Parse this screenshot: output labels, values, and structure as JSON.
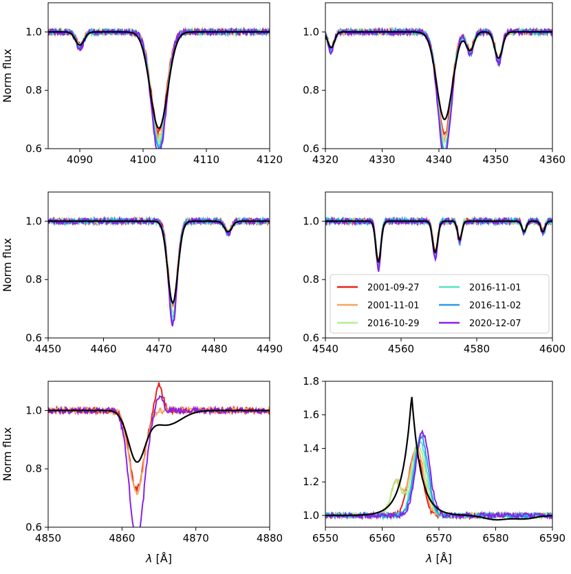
{
  "figure": {
    "ylabel": "Norm flux",
    "xlabel": "λ [Å]"
  },
  "legend": {
    "entries": [
      {
        "label": "2001-09-27",
        "color": "#e8211c"
      },
      {
        "label": "2001-11-01",
        "color": "#f5a35c"
      },
      {
        "label": "2016-10-29",
        "color": "#b5ec8c"
      },
      {
        "label": "2016-11-01",
        "color": "#57e3c8"
      },
      {
        "label": "2016-11-02",
        "color": "#2a9be8"
      },
      {
        "label": "2020-12-07",
        "color": "#8a1fe8"
      }
    ]
  },
  "chart_data": [
    {
      "type": "line",
      "panel": "top-left",
      "xlim": [
        4085,
        4120
      ],
      "ylim": [
        0.6,
        1.1
      ],
      "xticks": [
        4090,
        4100,
        4110,
        4120
      ],
      "yticks": [
        0.6,
        0.8,
        1.0
      ],
      "ylabel": "Norm flux",
      "xlabel": "",
      "lines": [
        {
          "center": 4102.5,
          "depth": 0.38,
          "width": 1.2
        },
        {
          "center": 4090,
          "depth": 0.05,
          "width": 0.6
        }
      ],
      "model": {
        "color": "#000000",
        "depth": 0.33
      }
    },
    {
      "type": "line",
      "panel": "top-right",
      "xlim": [
        4320,
        4360
      ],
      "ylim": [
        0.6,
        1.1
      ],
      "xticks": [
        4320,
        4330,
        4340,
        4350,
        4360
      ],
      "yticks": [
        0.6,
        0.8,
        1.0
      ],
      "ylabel": "",
      "xlabel": "",
      "lines": [
        {
          "center": 4341,
          "depth": 0.39,
          "width": 1.2
        },
        {
          "center": 4350.5,
          "depth": 0.1,
          "width": 0.6
        },
        {
          "center": 4345.5,
          "depth": 0.07,
          "width": 0.6
        },
        {
          "center": 4321,
          "depth": 0.06,
          "width": 0.5
        }
      ],
      "model": {
        "color": "#000000",
        "depth": 0.3
      }
    },
    {
      "type": "line",
      "panel": "middle-left",
      "xlim": [
        4450,
        4490
      ],
      "ylim": [
        0.6,
        1.1
      ],
      "xticks": [
        4450,
        4460,
        4470,
        4480,
        4490
      ],
      "yticks": [
        0.6,
        0.8,
        1.0
      ],
      "ylabel": "Norm flux",
      "xlabel": "",
      "lines": [
        {
          "center": 4472.5,
          "depth": 0.32,
          "width": 0.8
        },
        {
          "center": 4482.5,
          "depth": 0.04,
          "width": 0.6
        }
      ],
      "model": {
        "color": "#000000",
        "depth": 0.28
      }
    },
    {
      "type": "line",
      "panel": "middle-right",
      "xlim": [
        4540,
        4600
      ],
      "ylim": [
        0.6,
        1.1
      ],
      "xticks": [
        4540,
        4560,
        4580,
        4600
      ],
      "yticks": [
        0.6,
        0.8,
        1.0
      ],
      "ylabel": "",
      "xlabel": "",
      "lines": [
        {
          "center": 4554,
          "depth": 0.15,
          "width": 0.6
        },
        {
          "center": 4569,
          "depth": 0.12,
          "width": 0.6
        },
        {
          "center": 4575.5,
          "depth": 0.07,
          "width": 0.5
        },
        {
          "center": 4592.5,
          "depth": 0.04,
          "width": 0.5
        },
        {
          "center": 4597.5,
          "depth": 0.04,
          "width": 0.5
        }
      ],
      "model": {
        "color": "#000000",
        "depth": 0.14
      }
    },
    {
      "type": "line",
      "panel": "bottom-left",
      "xlim": [
        4850,
        4880
      ],
      "ylim": [
        0.6,
        1.1
      ],
      "xticks": [
        4850,
        4860,
        4870,
        4880
      ],
      "yticks": [
        0.6,
        0.8,
        1.0
      ],
      "ylabel": "Norm flux",
      "xlabel": "λ [Å]",
      "lines": [
        {
          "center": 4862,
          "depth": 0.3,
          "width": 1.0
        }
      ],
      "model": {
        "color": "#000000",
        "depth": 0.17
      }
    },
    {
      "type": "line",
      "panel": "bottom-right",
      "xlim": [
        6550,
        6590
      ],
      "ylim": [
        0.93,
        1.8
      ],
      "xticks": [
        6550,
        6560,
        6570,
        6580,
        6590
      ],
      "yticks": [
        1.0,
        1.2,
        1.4,
        1.6,
        1.8
      ],
      "ylabel": "",
      "xlabel": "λ [Å]",
      "emission": {
        "center": 6566.5,
        "height": 0.45,
        "width": 1.2
      },
      "model": {
        "color": "#000000",
        "center": 6565.2,
        "peak": 1.72
      }
    }
  ]
}
